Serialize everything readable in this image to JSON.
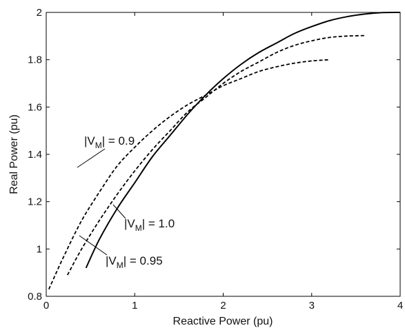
{
  "chart_data": {
    "type": "line",
    "xlabel": "Reactive Power (pu)",
    "ylabel": "Real Power (pu)",
    "xlim": [
      0,
      4
    ],
    "ylim": [
      0.8,
      2
    ],
    "xticks": [
      "0",
      "1",
      "2",
      "3",
      "4"
    ],
    "yticks": [
      "0.8",
      "1",
      "1.2",
      "1.4",
      "1.6",
      "1.8",
      "2"
    ],
    "grid": false,
    "legend": "none",
    "series": [
      {
        "name": "|V_M| = 1.0",
        "style": "solid",
        "x": [
          0.45,
          0.6,
          0.8,
          1.0,
          1.2,
          1.4,
          1.6,
          1.8,
          2.0,
          2.2,
          2.4,
          2.6,
          2.8,
          3.0,
          3.2,
          3.4,
          3.6,
          3.8,
          4.0
        ],
        "y": [
          0.92,
          1.04,
          1.17,
          1.28,
          1.39,
          1.48,
          1.57,
          1.65,
          1.72,
          1.78,
          1.83,
          1.87,
          1.91,
          1.94,
          1.965,
          1.982,
          1.993,
          1.999,
          2.0
        ]
      },
      {
        "name": "|V_M| = 0.95",
        "style": "dashed",
        "x": [
          0.24,
          0.4,
          0.6,
          0.8,
          1.0,
          1.2,
          1.4,
          1.6,
          1.8,
          2.0,
          2.2,
          2.4,
          2.6,
          2.8,
          3.0,
          3.2,
          3.4,
          3.6
        ],
        "y": [
          0.89,
          1.0,
          1.12,
          1.23,
          1.33,
          1.42,
          1.5,
          1.58,
          1.64,
          1.7,
          1.75,
          1.79,
          1.83,
          1.86,
          1.88,
          1.894,
          1.9,
          1.902
        ]
      },
      {
        "name": "|V_M| = 0.9",
        "style": "dashed",
        "x": [
          0.03,
          0.2,
          0.4,
          0.6,
          0.8,
          1.0,
          1.2,
          1.4,
          1.6,
          1.8,
          2.0,
          2.2,
          2.4,
          2.6,
          2.8,
          3.0,
          3.2
        ],
        "y": [
          0.83,
          0.97,
          1.12,
          1.24,
          1.35,
          1.43,
          1.5,
          1.56,
          1.61,
          1.65,
          1.69,
          1.72,
          1.75,
          1.77,
          1.785,
          1.795,
          1.8
        ]
      }
    ],
    "annotations": [
      {
        "label": "|V",
        "sub": "M",
        "value": "| = 0.9",
        "series": 2
      },
      {
        "label": "|V",
        "sub": "M",
        "value": "| = 1.0",
        "series": 0
      },
      {
        "label": "|V",
        "sub": "M",
        "value": "| = 0.95",
        "series": 1
      }
    ]
  }
}
